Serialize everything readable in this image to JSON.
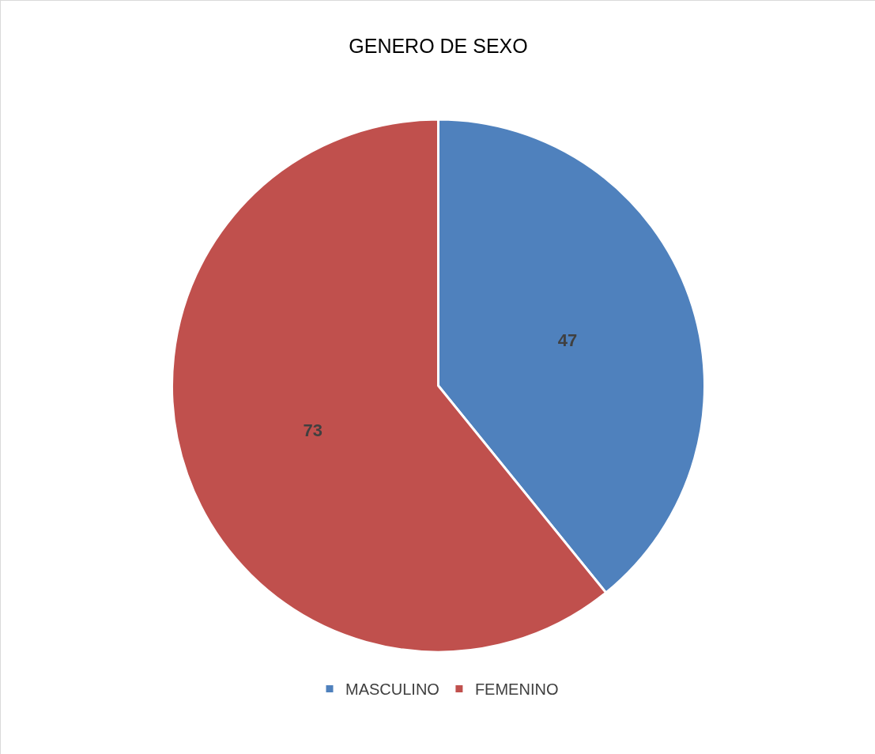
{
  "chart_data": {
    "type": "pie",
    "title": "GENERO DE SEXO",
    "categories": [
      "MASCULINO",
      "FEMENINO"
    ],
    "values": [
      47,
      73
    ],
    "colors": [
      "#4f81bd",
      "#c0504d"
    ],
    "data_labels": true,
    "legend": "bottom"
  }
}
